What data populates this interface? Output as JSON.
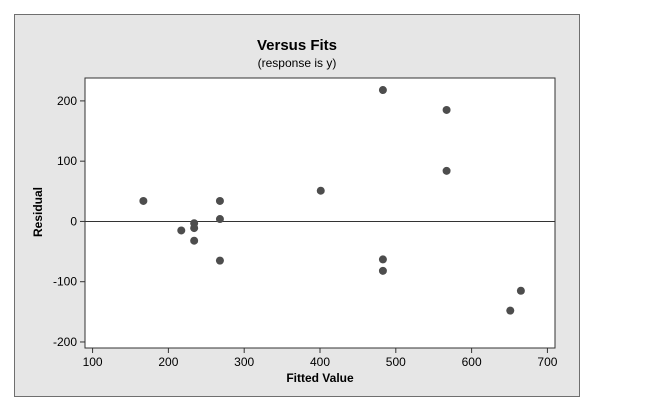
{
  "chart_data": {
    "type": "scatter",
    "title": "Versus Fits",
    "subtitle": "(response is y)",
    "xlabel": "Fitted Value",
    "ylabel": "Residual",
    "xlim": [
      90,
      710
    ],
    "ylim": [
      -210,
      238
    ],
    "x_ticks": [
      100,
      200,
      300,
      400,
      500,
      600,
      700
    ],
    "y_ticks": [
      -200,
      -100,
      0,
      100,
      200
    ],
    "reference_line_y": 0,
    "grid": false,
    "colors": {
      "point": "#4d4d4d",
      "frame_bg": "#e6e6e6",
      "plot_bg": "#ffffff"
    },
    "points": [
      {
        "x": 167,
        "y": 34
      },
      {
        "x": 217,
        "y": -15
      },
      {
        "x": 234,
        "y": -3
      },
      {
        "x": 234,
        "y": -11
      },
      {
        "x": 234,
        "y": -32
      },
      {
        "x": 268,
        "y": 34
      },
      {
        "x": 268,
        "y": 4
      },
      {
        "x": 268,
        "y": -65
      },
      {
        "x": 401,
        "y": 51
      },
      {
        "x": 483,
        "y": 218
      },
      {
        "x": 483,
        "y": -63
      },
      {
        "x": 483,
        "y": -82
      },
      {
        "x": 567,
        "y": 185
      },
      {
        "x": 567,
        "y": 84
      },
      {
        "x": 651,
        "y": -148
      },
      {
        "x": 665,
        "y": -115
      }
    ]
  }
}
